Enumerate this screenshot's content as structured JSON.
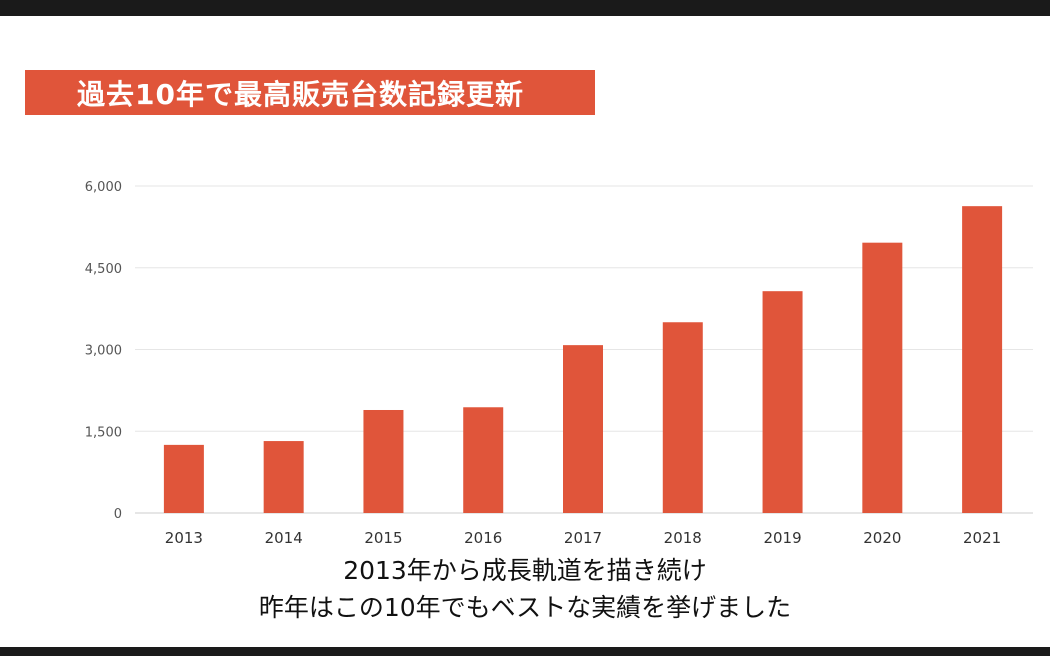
{
  "title": "過去10年で最高販売台数記録更新",
  "subtitle_lines": [
    "2013年から成長軌道を描き続け",
    "昨年はこの10年でもベストな実績を挙げました"
  ],
  "colors": {
    "banner": "#e0553a",
    "bar": "#e0553a",
    "grid": "#e6e6e6",
    "axis_text": "#555555"
  },
  "chart_data": {
    "type": "bar",
    "categories": [
      "2013",
      "2014",
      "2015",
      "2016",
      "2017",
      "2018",
      "2019",
      "2020",
      "2021"
    ],
    "values": [
      1250,
      1320,
      1890,
      1940,
      3080,
      3500,
      4070,
      4960,
      5630
    ],
    "yticks": [
      "0",
      "1,500",
      "3,000",
      "4,500",
      "6,000"
    ],
    "ytick_values": [
      0,
      1500,
      3000,
      4500,
      6000
    ],
    "ylim": [
      0,
      6000
    ],
    "grid": true
  }
}
